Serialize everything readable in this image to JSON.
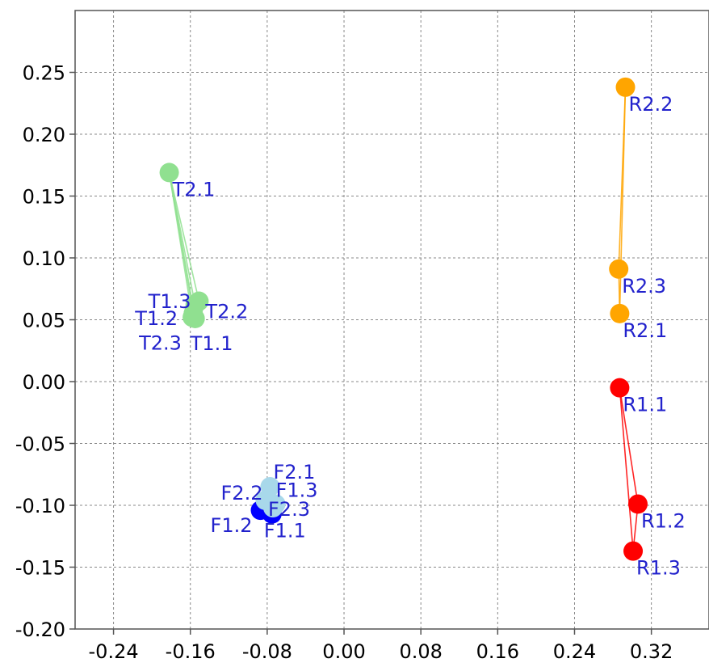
{
  "chart_data": {
    "type": "scatter",
    "title": "",
    "xlabel": "",
    "ylabel": "",
    "xlim": [
      -0.28,
      0.38
    ],
    "ylim": [
      -0.2,
      0.3
    ],
    "grid": true,
    "x_ticks": [
      -0.24,
      -0.16,
      -0.08,
      0.0,
      0.08,
      0.16,
      0.24,
      0.32
    ],
    "x_tick_labels": [
      "-0.24",
      "-0.16",
      "-0.08",
      "0.00",
      "0.08",
      "0.16",
      "0.24",
      "0.32"
    ],
    "y_ticks": [
      -0.2,
      -0.15,
      -0.1,
      -0.05,
      0.0,
      0.05,
      0.1,
      0.15,
      0.2,
      0.25
    ],
    "y_tick_labels": [
      "-0.20",
      "-0.15",
      "-0.10",
      "-0.05",
      "0.00",
      "0.05",
      "0.10",
      "0.15",
      "0.20",
      "0.25"
    ],
    "label_color": "#2222cc",
    "groups": [
      {
        "color": "#90e090",
        "points": [
          {
            "label": "T2.1",
            "x": -0.182,
            "y": 0.169
          },
          {
            "label": "T2.2",
            "x": -0.151,
            "y": 0.065
          },
          {
            "label": "T1.3",
            "x": -0.155,
            "y": 0.062
          },
          {
            "label": "T1.2",
            "x": -0.157,
            "y": 0.055
          },
          {
            "label": "T2.3",
            "x": -0.158,
            "y": 0.052
          },
          {
            "label": "T1.1",
            "x": -0.155,
            "y": 0.051
          }
        ]
      },
      {
        "color": "#ffa500",
        "points": [
          {
            "label": "R2.2",
            "x": 0.293,
            "y": 0.238
          },
          {
            "label": "R2.3",
            "x": 0.286,
            "y": 0.091
          },
          {
            "label": "R2.1",
            "x": 0.287,
            "y": 0.055
          }
        ]
      },
      {
        "color": "#ff0000",
        "points": [
          {
            "label": "R1.1",
            "x": 0.287,
            "y": -0.005
          },
          {
            "label": "R1.2",
            "x": 0.306,
            "y": -0.099
          },
          {
            "label": "R1.3",
            "x": 0.301,
            "y": -0.137
          }
        ]
      },
      {
        "color": "#0000ff",
        "points": [
          {
            "label": "F1.2",
            "x": -0.087,
            "y": -0.104
          },
          {
            "label": "F1.1",
            "x": -0.075,
            "y": -0.107
          }
        ]
      },
      {
        "color": "#a8d8ea",
        "points": [
          {
            "label": "F2.1",
            "x": -0.077,
            "y": -0.085
          },
          {
            "label": "F2.2",
            "x": -0.082,
            "y": -0.096
          },
          {
            "label": "F1.3",
            "x": -0.071,
            "y": -0.099
          },
          {
            "label": "F2.3",
            "x": -0.074,
            "y": -0.102
          }
        ]
      }
    ]
  }
}
